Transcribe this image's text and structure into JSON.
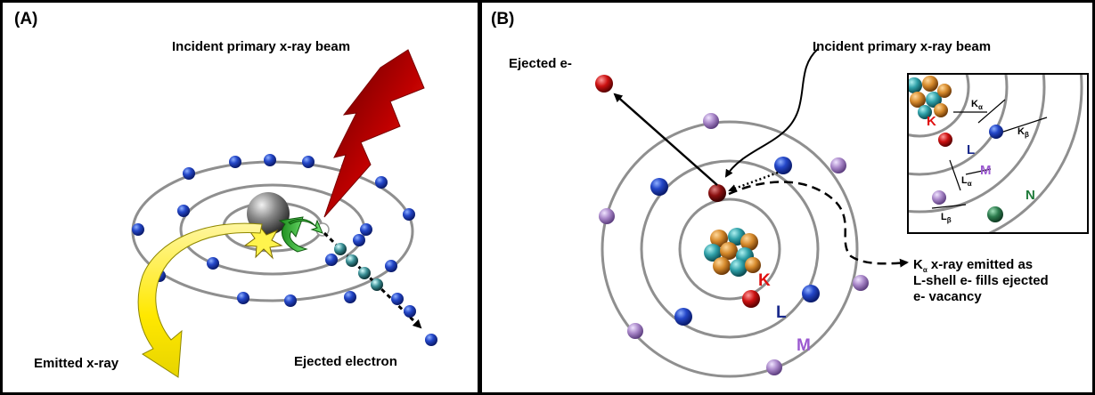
{
  "panel_a": {
    "label": "(A)",
    "incident_beam": "Incident primary x-ray beam",
    "emitted_xray": "Emitted x-ray",
    "ejected_electron": "Ejected electron"
  },
  "panel_b": {
    "label": "(B)",
    "incident_beam": "Incident primary x-ray beam",
    "ejected_e": "Ejected e-",
    "shells": {
      "k": "K",
      "l": "L",
      "m": "M",
      "n": "N"
    },
    "emission": {
      "k_base": "K",
      "k_sub": "α",
      "line1_rest": " x-ray emitted as",
      "line2": "L-shell e- fills ejected",
      "line3": "e-  vacancy"
    },
    "inset": {
      "k_alpha_base": "K",
      "k_alpha_sub": "α",
      "k_beta_base": "K",
      "k_beta_sub": "β",
      "l_alpha_base": "L",
      "l_alpha_sub": "α",
      "l_beta_base": "L",
      "l_beta_sub": "β"
    }
  },
  "colors": {
    "shell_ring": "#8f8f8f",
    "electron_blue": "#1f3fbf",
    "electron_purple": "#a987c9",
    "electron_red": "#cc1111",
    "electron_green": "#2e7d4f",
    "k_label": "#e01010",
    "l_label": "#1a2a8c",
    "m_label": "#9b59d0",
    "n_label": "#1f7a3a"
  },
  "icons": [
    "xray-lightning-icon",
    "emitted-xray-arrow-icon",
    "flash-burst-icon",
    "nucleus-icon"
  ]
}
